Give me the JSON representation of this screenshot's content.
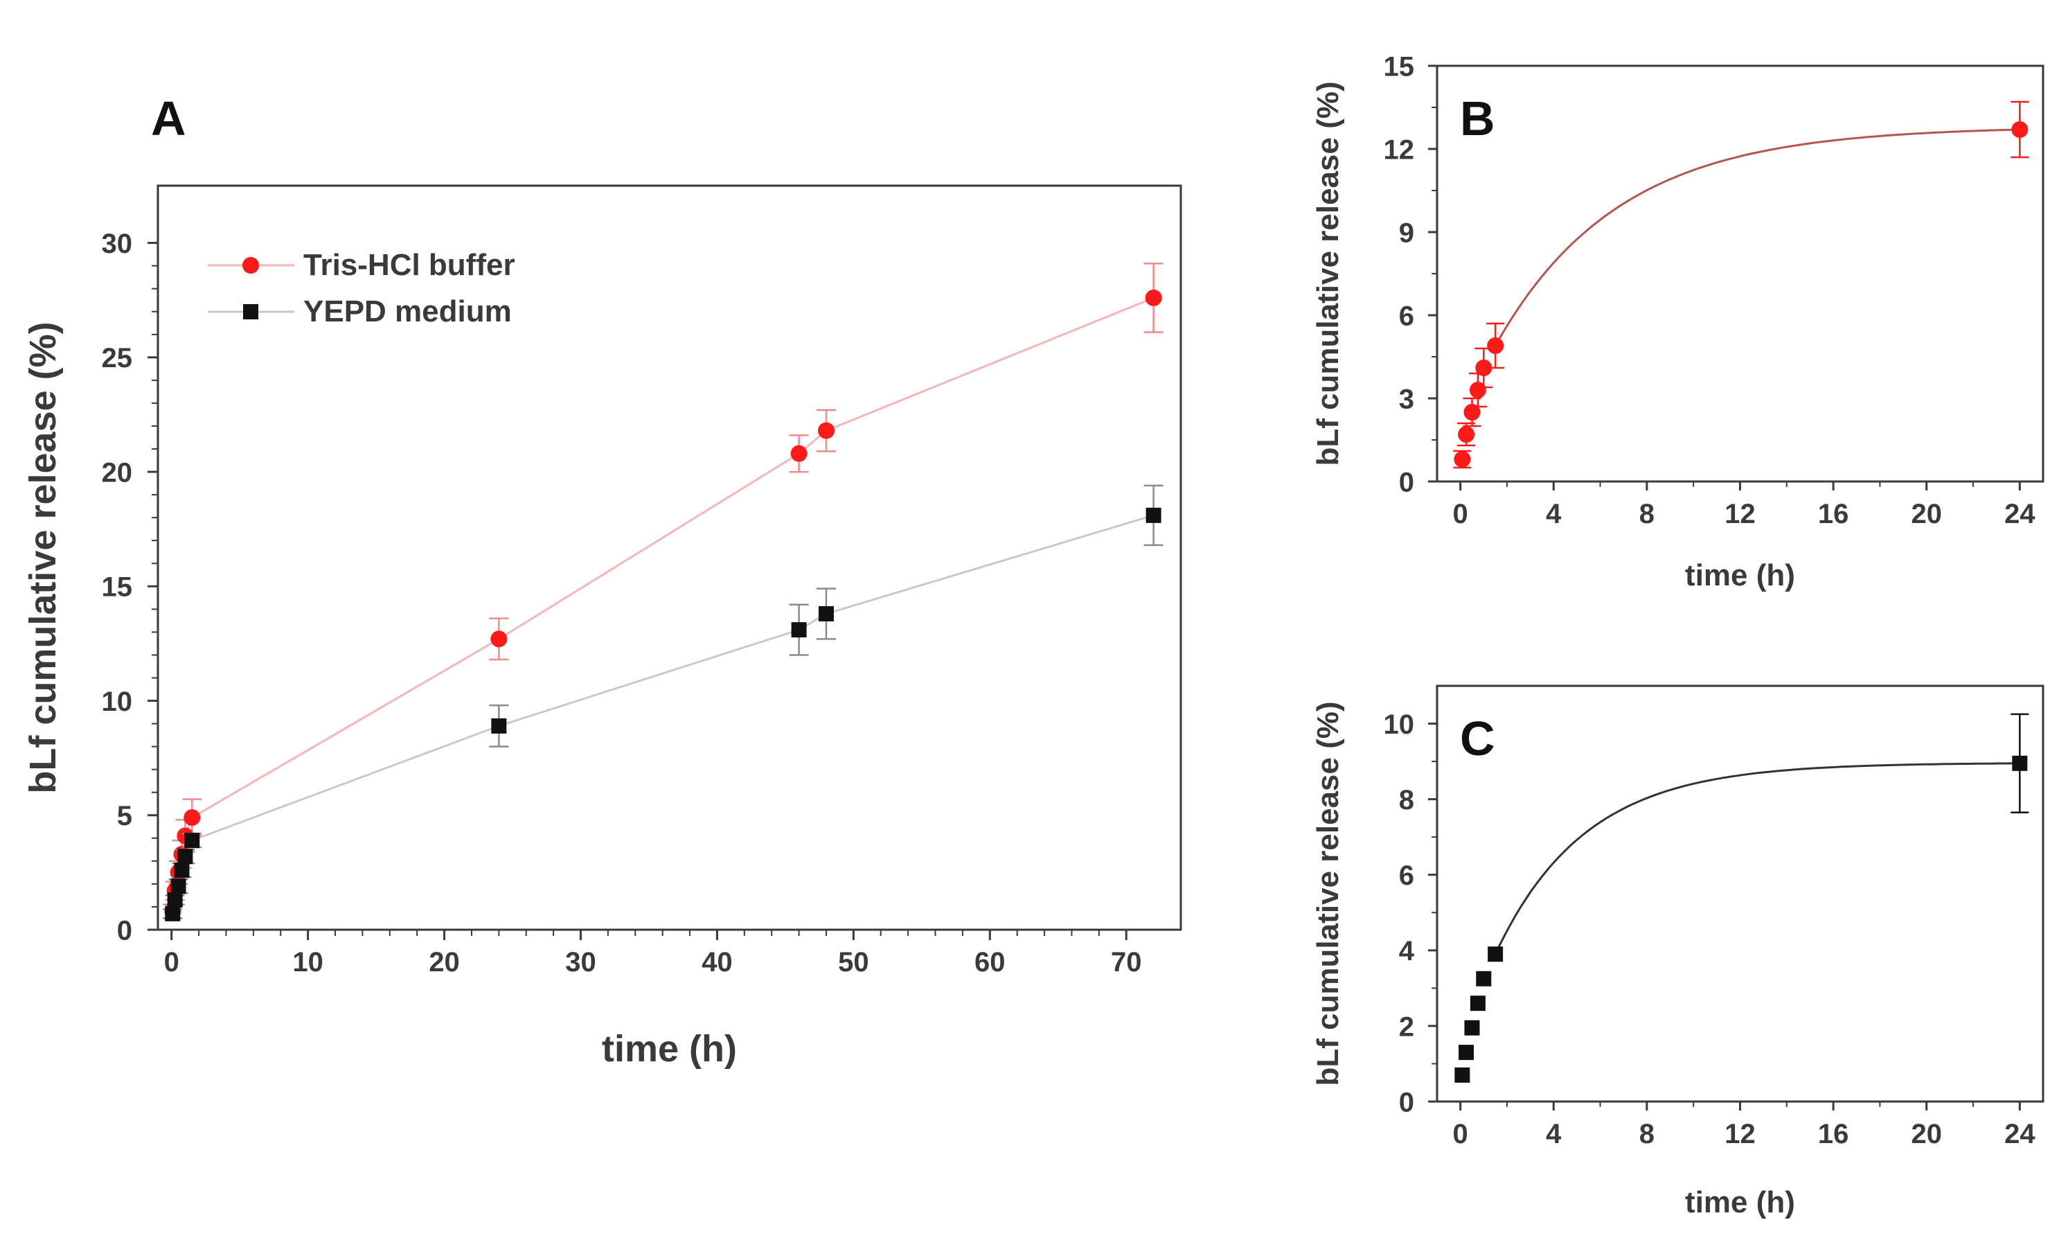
{
  "figure": {
    "panel_letters": [
      "A",
      "B",
      "C"
    ]
  },
  "chart_data": [
    {
      "panel": "A",
      "type": "scatter",
      "xlabel": "time (h)",
      "ylabel": "bLf cumulative release (%)",
      "xlim": [
        -1,
        74
      ],
      "ylim": [
        0,
        32.5
      ],
      "xticks": [
        0,
        10,
        20,
        30,
        40,
        50,
        60,
        70
      ],
      "yticks": [
        0,
        5,
        10,
        15,
        20,
        25,
        30
      ],
      "legend_position": "top-left",
      "series": [
        {
          "name": "Tris-HCl buffer",
          "color": "#ff1a1a",
          "line_color": "#f7b6b6",
          "marker": "circle",
          "x": [
            0.08,
            0.25,
            0.5,
            0.75,
            1,
            1.5,
            24,
            46,
            48,
            72
          ],
          "y": [
            0.8,
            1.7,
            2.5,
            3.3,
            4.1,
            4.9,
            12.7,
            20.8,
            21.8,
            27.6
          ],
          "err": [
            0.3,
            0.4,
            0.5,
            0.6,
            0.7,
            0.8,
            0.9,
            0.8,
            0.9,
            1.5
          ]
        },
        {
          "name": "YEPD medium",
          "color": "#111111",
          "line_color": "#c9c9c9",
          "marker": "square",
          "x": [
            0.08,
            0.25,
            0.5,
            0.75,
            1,
            1.5,
            24,
            46,
            48,
            72
          ],
          "y": [
            0.7,
            1.3,
            1.9,
            2.6,
            3.2,
            3.9,
            8.9,
            13.1,
            13.8,
            18.1
          ],
          "err": [
            0.2,
            0.2,
            0.3,
            0.3,
            0.3,
            0.3,
            0.9,
            1.1,
            1.1,
            1.3
          ]
        }
      ]
    },
    {
      "panel": "B",
      "type": "scatter",
      "xlabel": "time (h)",
      "ylabel": "bLf cumulative release (%)",
      "xlim": [
        -1,
        25
      ],
      "ylim": [
        0,
        15
      ],
      "xticks": [
        0,
        4,
        8,
        12,
        16,
        20,
        24
      ],
      "yticks": [
        0,
        3,
        6,
        9,
        12,
        15
      ],
      "series": [
        {
          "name": "Tris-HCl buffer",
          "color": "#ff1a1a",
          "marker": "circle",
          "x": [
            0.08,
            0.25,
            0.5,
            0.75,
            1,
            1.5,
            24
          ],
          "y": [
            0.8,
            1.7,
            2.5,
            3.3,
            4.1,
            4.9,
            12.7
          ],
          "err": [
            0.3,
            0.4,
            0.5,
            0.6,
            0.7,
            0.8,
            1.0
          ]
        }
      ],
      "fit": {
        "color": "#b85450",
        "x_start": 1.5,
        "x_end": 24,
        "y_start": 4.9,
        "y_end": 12.7,
        "rate": 0.19
      }
    },
    {
      "panel": "C",
      "type": "scatter",
      "xlabel": "time (h)",
      "ylabel": "bLf cumulative release (%)",
      "xlim": [
        -1,
        25
      ],
      "ylim": [
        0,
        11
      ],
      "xticks": [
        0,
        4,
        8,
        12,
        16,
        20,
        24
      ],
      "yticks": [
        0,
        2,
        4,
        6,
        8,
        10
      ],
      "series": [
        {
          "name": "YEPD medium",
          "color": "#111111",
          "marker": "square",
          "x": [
            0.08,
            0.25,
            0.5,
            0.75,
            1,
            1.5,
            24
          ],
          "y": [
            0.7,
            1.3,
            1.95,
            2.6,
            3.25,
            3.9,
            8.95
          ],
          "err": [
            0,
            0,
            0,
            0,
            0,
            0,
            1.3
          ]
        }
      ],
      "fit": {
        "color": "#333333",
        "x_start": 1.5,
        "x_end": 24,
        "y_start": 3.9,
        "y_end": 8.95,
        "rate": 0.26
      }
    }
  ]
}
